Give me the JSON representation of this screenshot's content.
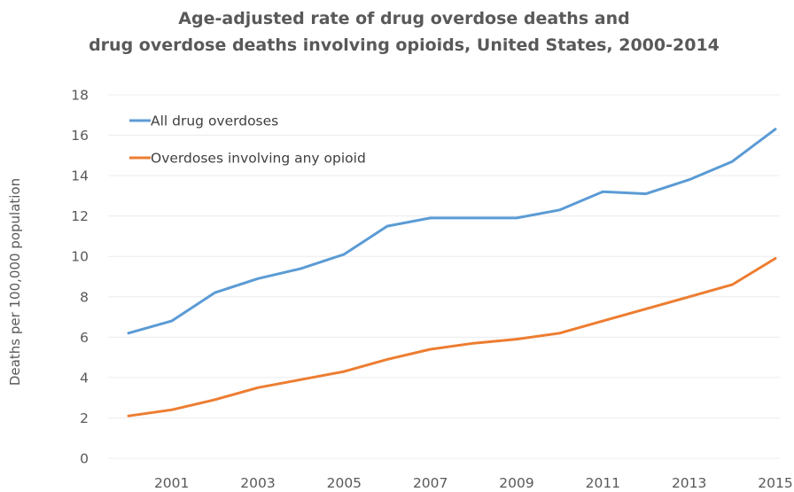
{
  "chart_data": {
    "type": "line",
    "title": [
      "Age-adjusted rate of drug overdose deaths and",
      "drug overdose deaths involving opioids, United States, 2000-2014"
    ],
    "xlabel": "",
    "ylabel": "Deaths per 100,000 population",
    "x": [
      2000,
      2001,
      2002,
      2003,
      2004,
      2005,
      2006,
      2007,
      2008,
      2009,
      2010,
      2011,
      2012,
      2013,
      2014,
      2015
    ],
    "x_tick_labels": [
      "2001",
      "2003",
      "2005",
      "2007",
      "2009",
      "2011",
      "2013",
      "2015"
    ],
    "ylim": [
      0,
      18
    ],
    "y_ticks": [
      0,
      2,
      4,
      6,
      8,
      10,
      12,
      14,
      16,
      18
    ],
    "grid": true,
    "legend_position": "top-left",
    "series": [
      {
        "name": "All drug overdoses",
        "color": "#5b9bd5",
        "values": [
          6.2,
          6.8,
          8.2,
          8.9,
          9.4,
          10.1,
          11.5,
          11.9,
          11.9,
          11.9,
          12.3,
          13.2,
          13.1,
          13.8,
          14.7,
          16.3
        ]
      },
      {
        "name": "Overdoses involving any opioid",
        "color": "#ed7d31",
        "values": [
          2.1,
          2.4,
          2.9,
          3.5,
          3.9,
          4.3,
          4.9,
          5.4,
          5.7,
          5.9,
          6.2,
          6.8,
          7.4,
          8.0,
          8.6,
          9.9
        ]
      }
    ]
  }
}
